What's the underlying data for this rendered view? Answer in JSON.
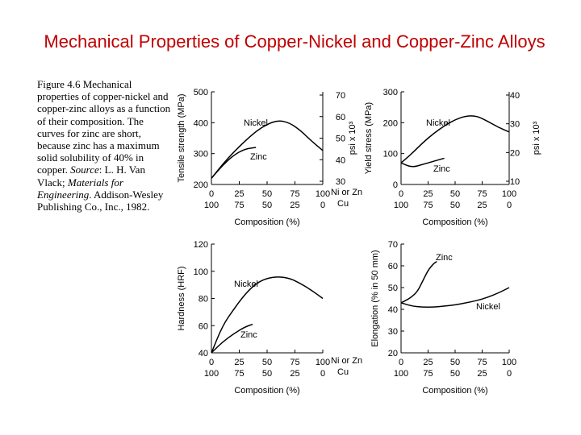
{
  "slide": {
    "title": "Mechanical Properties of Copper-Nickel and Copper-Zinc Alloys"
  },
  "caption": {
    "part1": "Figure 4.6 Mechanical properties of copper-nickel and copper-zinc alloys as a function of their composition. The curves for zinc are short, because zinc has a maximum solid solubility of 40% in copper. ",
    "source_label": "Source",
    "part2": ": L. H. Van Vlack; ",
    "book_title": "Materials for Engineering",
    "part3": ". Addison-Wesley Publishing Co., Inc., 1982."
  },
  "chart_data": [
    {
      "type": "line",
      "title": "",
      "ylabel": "Tensile strength (MPa)",
      "ylabel_right": "psi x 10³",
      "xlabel": "Composition (%)",
      "xlabel_top_name": "Ni or Zn",
      "xlabel_bottom_name": "Cu",
      "x_ticks_top": [
        "0",
        "25",
        "50",
        "75",
        "100"
      ],
      "x_ticks_bottom": [
        "100",
        "75",
        "50",
        "25",
        "0"
      ],
      "xlim": [
        0,
        100
      ],
      "ylim": [
        200,
        500
      ],
      "y_ticks": [
        "200",
        "300",
        "400",
        "500"
      ],
      "y_right_ticks": [
        "30",
        "40",
        "50",
        "60",
        "70"
      ],
      "grid": false,
      "series": [
        {
          "name": "Nickel",
          "x": [
            0,
            10,
            20,
            30,
            40,
            50,
            60,
            70,
            80,
            90,
            100
          ],
          "y": [
            220,
            265,
            305,
            340,
            372,
            395,
            408,
            400,
            375,
            340,
            310
          ]
        },
        {
          "name": "Zinc",
          "x": [
            0,
            10,
            20,
            30,
            40
          ],
          "y": [
            220,
            262,
            295,
            315,
            320
          ]
        }
      ]
    },
    {
      "type": "line",
      "title": "",
      "ylabel": "Yield stress (MPa)",
      "ylabel_right": "psi x 10³",
      "xlabel": "Composition (%)",
      "x_ticks_top": [
        "0",
        "25",
        "50",
        "75",
        "100"
      ],
      "x_ticks_bottom": [
        "100",
        "75",
        "50",
        "25",
        "0"
      ],
      "xlim": [
        0,
        100
      ],
      "ylim": [
        0,
        300
      ],
      "y_ticks": [
        "0",
        "100",
        "200",
        "300"
      ],
      "y_right_ticks": [
        "10",
        "20",
        "30",
        "40"
      ],
      "grid": false,
      "series": [
        {
          "name": "Nickel",
          "x": [
            0,
            10,
            20,
            30,
            40,
            50,
            60,
            70,
            80,
            90,
            100
          ],
          "y": [
            70,
            100,
            135,
            165,
            190,
            210,
            222,
            222,
            205,
            185,
            170
          ]
        },
        {
          "name": "Zinc",
          "x": [
            0,
            10,
            20,
            30,
            40
          ],
          "y": [
            70,
            55,
            65,
            75,
            85
          ]
        }
      ]
    },
    {
      "type": "line",
      "title": "",
      "ylabel": "Hardness (HRF)",
      "xlabel": "Composition (%)",
      "xlabel_top_name": "Ni or Zn",
      "xlabel_bottom_name": "Cu",
      "x_ticks_top": [
        "0",
        "25",
        "50",
        "75",
        "100"
      ],
      "x_ticks_bottom": [
        "100",
        "75",
        "50",
        "25",
        "0"
      ],
      "xlim": [
        0,
        100
      ],
      "ylim": [
        40,
        120
      ],
      "y_ticks": [
        "40",
        "60",
        "80",
        "100",
        "120"
      ],
      "grid": false,
      "series": [
        {
          "name": "Nickel",
          "x": [
            0,
            10,
            20,
            30,
            40,
            50,
            60,
            70,
            80,
            90,
            100
          ],
          "y": [
            40,
            60,
            72,
            83,
            91,
            95,
            96,
            95,
            91,
            86,
            80
          ]
        },
        {
          "name": "Zinc",
          "x": [
            0,
            10,
            20,
            30,
            37
          ],
          "y": [
            40,
            48,
            54,
            59,
            61
          ]
        }
      ]
    },
    {
      "type": "line",
      "title": "",
      "ylabel": "Elongation (% in 50 mm)",
      "xlabel": "Composition (%)",
      "x_ticks_top": [
        "0",
        "25",
        "50",
        "75",
        "100"
      ],
      "x_ticks_bottom": [
        "100",
        "75",
        "50",
        "25",
        "0"
      ],
      "xlim": [
        0,
        100
      ],
      "ylim": [
        20,
        70
      ],
      "y_ticks": [
        "20",
        "30",
        "40",
        "50",
        "60",
        "70"
      ],
      "grid": false,
      "series": [
        {
          "name": "Nickel",
          "x": [
            0,
            10,
            20,
            30,
            40,
            50,
            60,
            70,
            80,
            90,
            100
          ],
          "y": [
            43,
            41.5,
            41,
            41,
            41.5,
            42,
            43,
            44,
            45.5,
            47.5,
            50
          ]
        },
        {
          "name": "Zinc",
          "x": [
            0,
            8,
            15,
            20,
            25,
            30,
            33
          ],
          "y": [
            43,
            45,
            48,
            53,
            58,
            61,
            62
          ]
        }
      ]
    }
  ]
}
